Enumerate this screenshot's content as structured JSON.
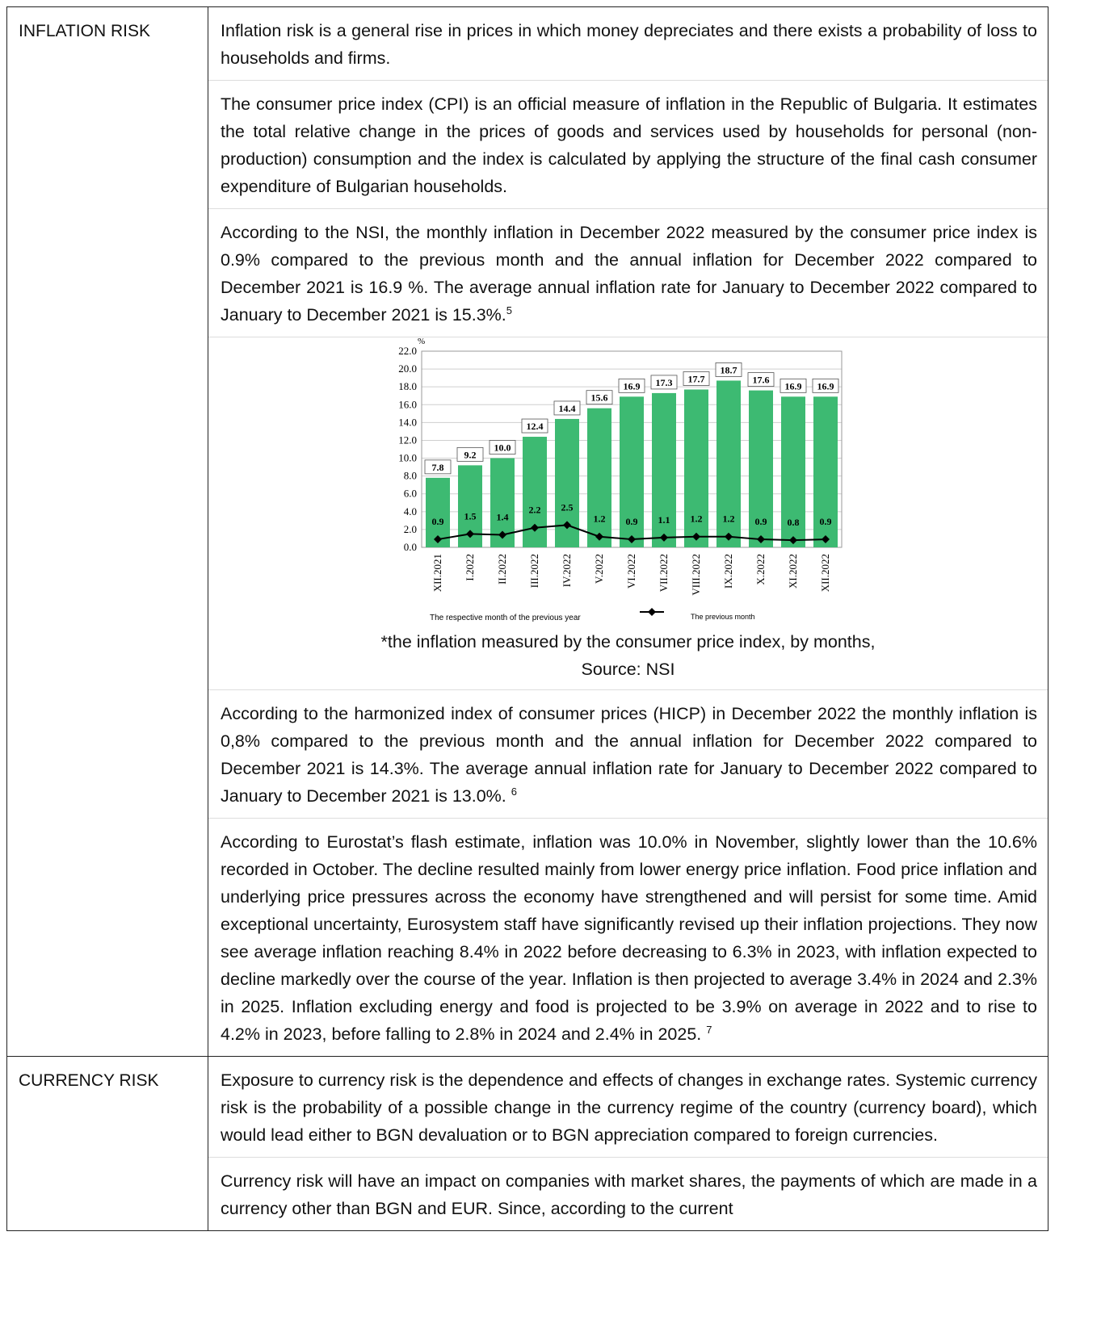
{
  "rows": [
    {
      "label": "INFLATION RISK",
      "paragraphs": [
        {
          "text": "Inflation risk is a general rise in prices in which money depreciates and there exists a probability of loss to households and firms."
        },
        {
          "text": "The consumer price index (CPI) is an official measure of inflation in the Republic of Bulgaria. It estimates the total relative change in the prices of goods and services used by households for personal (non-production) consumption and the index is calculated by applying the structure of the final cash consumer expenditure of Bulgarian households."
        },
        {
          "text": "According to the NSI, the monthly inflation in December 2022 measured by the consumer price index is 0.9% compared to the previous month and the annual inflation for December 2022 compared to December 2021 is 16.9 %. The average annual inflation rate for January to December 2022 compared to January to December 2021 is 15.3%.",
          "note": "5"
        },
        {
          "text": "According to the harmonized index of consumer prices (HICP) in December 2022 the monthly inflation is 0,8% compared to the previous month and the annual inflation for December 2022 compared to December 2021 is 14.3%. The average annual inflation rate for January to December 2022 compared to January to December 2021 is 13.0%. ",
          "note": "6"
        },
        {
          "text": "According to Eurostat’s flash estimate, inflation was 10.0% in November, slightly lower than the 10.6% recorded in October. The decline resulted mainly from lower energy price inflation. Food price inflation and underlying price pressures across the economy have strengthened and will persist for some time. Amid exceptional uncertainty, Eurosystem staff have significantly revised up their inflation projections. They now see average inflation reaching 8.4% in 2022 before decreasing to 6.3% in 2023, with inflation expected to decline markedly over the course of the year. Inflation is then projected to average 3.4% in 2024 and 2.3% in 2025. Inflation excluding energy and food is projected to be 3.9% on average in 2022 and to rise to 4.2% in 2023, before falling to 2.8% in 2024 and 2.4% in 2025. ",
          "note": "7"
        }
      ]
    },
    {
      "label": "CURRENCY RISK",
      "paragraphs": [
        {
          "text": "Exposure to currency risk is the dependence and effects of changes in exchange rates. Systemic currency risk is the probability of a possible change in the currency regime of the country (currency board), which would lead either to BGN devaluation or to BGN appreciation compared to foreign currencies."
        },
        {
          "text": "Currency risk will have an impact on companies with market shares, the payments of which are made in a currency other than BGN and EUR. Since, according to the current"
        }
      ]
    }
  ],
  "caption": [
    "*the inflation measured by the consumer price index, by months,",
    "Source: NSI"
  ],
  "chart_data": {
    "type": "bar",
    "y_unit": "%",
    "categories": [
      "XII.2021",
      "I.2022",
      "II.2022",
      "III.2022",
      "IV.2022",
      "V.2022",
      "VI.2022",
      "VII.2022",
      "VIII.2022",
      "IX.2022",
      "X.2022",
      "XI.2022",
      "XII.2022"
    ],
    "series": [
      {
        "name": "The respective month of the previous year",
        "type": "bar",
        "color": "#3dba72",
        "values": [
          7.8,
          9.2,
          10.0,
          12.4,
          14.4,
          15.6,
          16.9,
          17.3,
          17.7,
          18.7,
          17.6,
          16.9,
          16.9
        ],
        "value_labels": [
          "7.8",
          "9.2",
          "10.0",
          "12.4",
          "14.4",
          "15.6",
          "16.9",
          "17.3",
          "17.7",
          "18.7",
          "17.6",
          "16.9",
          "16.9"
        ]
      },
      {
        "name": "The previous month",
        "type": "line",
        "color": "#000000",
        "values": [
          0.9,
          1.5,
          1.4,
          2.2,
          2.5,
          1.2,
          0.9,
          1.1,
          1.2,
          1.2,
          0.9,
          0.8,
          0.9
        ]
      }
    ],
    "ylim": [
      0,
      22
    ],
    "yticks": [
      {
        "value": 0,
        "label": "0.0"
      },
      {
        "value": 2,
        "label": "2.0"
      },
      {
        "value": 4,
        "label": "4.0"
      },
      {
        "value": 6,
        "label": "6.0"
      },
      {
        "value": 8,
        "label": "8.0"
      },
      {
        "value": 10,
        "label": "10.0"
      },
      {
        "value": 12,
        "label": "12.0"
      },
      {
        "value": 14,
        "label": "14.0"
      },
      {
        "value": 16,
        "label": "16.0"
      },
      {
        "value": 18,
        "label": "18.0"
      },
      {
        "value": 20,
        "label": "20.0"
      },
      {
        "value": 22,
        "label": "22.0"
      }
    ],
    "grid": true
  }
}
